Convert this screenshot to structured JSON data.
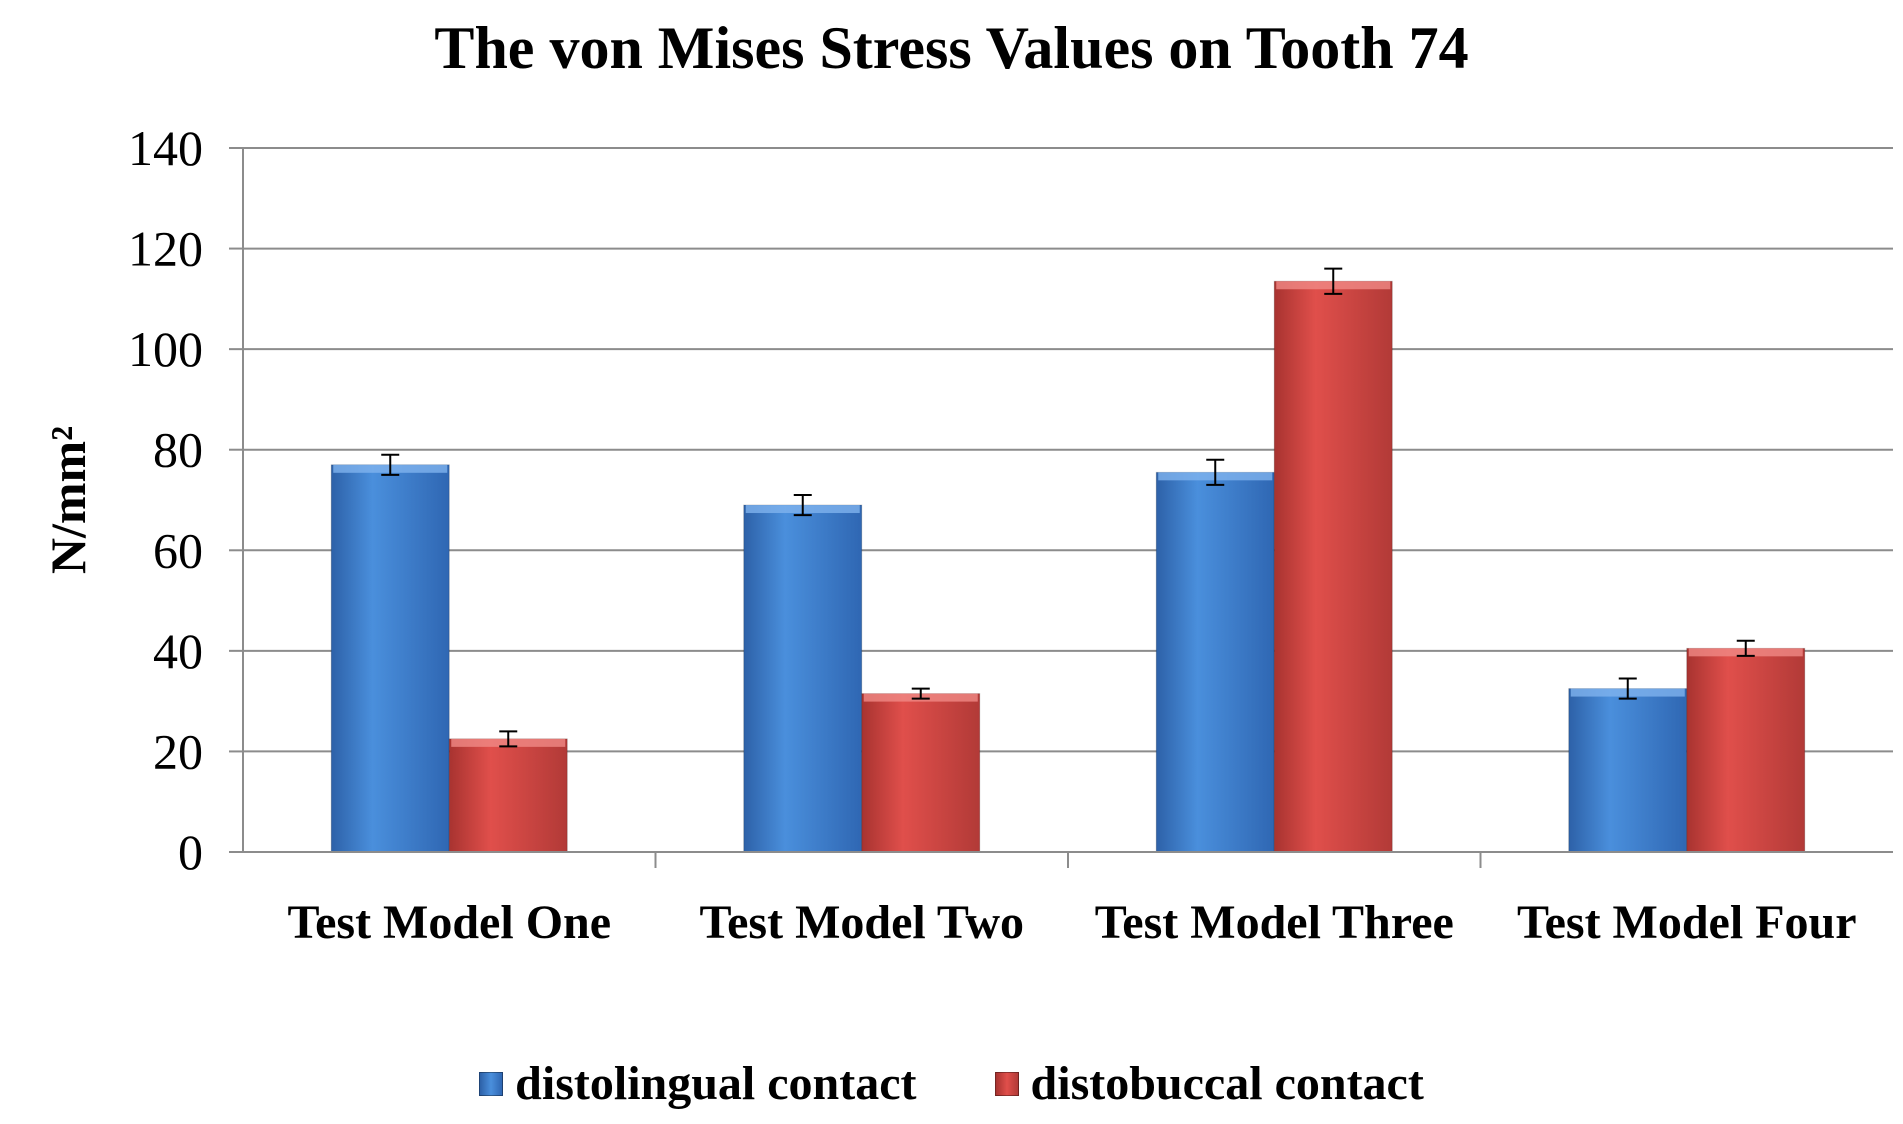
{
  "chart_data": {
    "type": "bar",
    "title": "The von Mises Stress Values on Tooth 74",
    "xlabel": "",
    "ylabel": "N/mm²",
    "ylim": [
      0,
      140
    ],
    "yticks": [
      0,
      20,
      40,
      60,
      80,
      100,
      120,
      140
    ],
    "grid": true,
    "legend_position": "bottom",
    "categories": [
      "Test Model One",
      "Test Model Two",
      "Test Model Three",
      "Test Model Four"
    ],
    "series": [
      {
        "name": "distolingual contact",
        "color": "#3a78c9",
        "values": [
          77,
          69,
          75.5,
          32.5
        ],
        "errors": [
          2,
          2,
          2.5,
          2
        ]
      },
      {
        "name": "distobuccal contact",
        "color": "#c9403d",
        "values": [
          22.5,
          31.5,
          113.5,
          40.5
        ],
        "errors": [
          1.5,
          1,
          2.5,
          1.5
        ]
      }
    ]
  }
}
